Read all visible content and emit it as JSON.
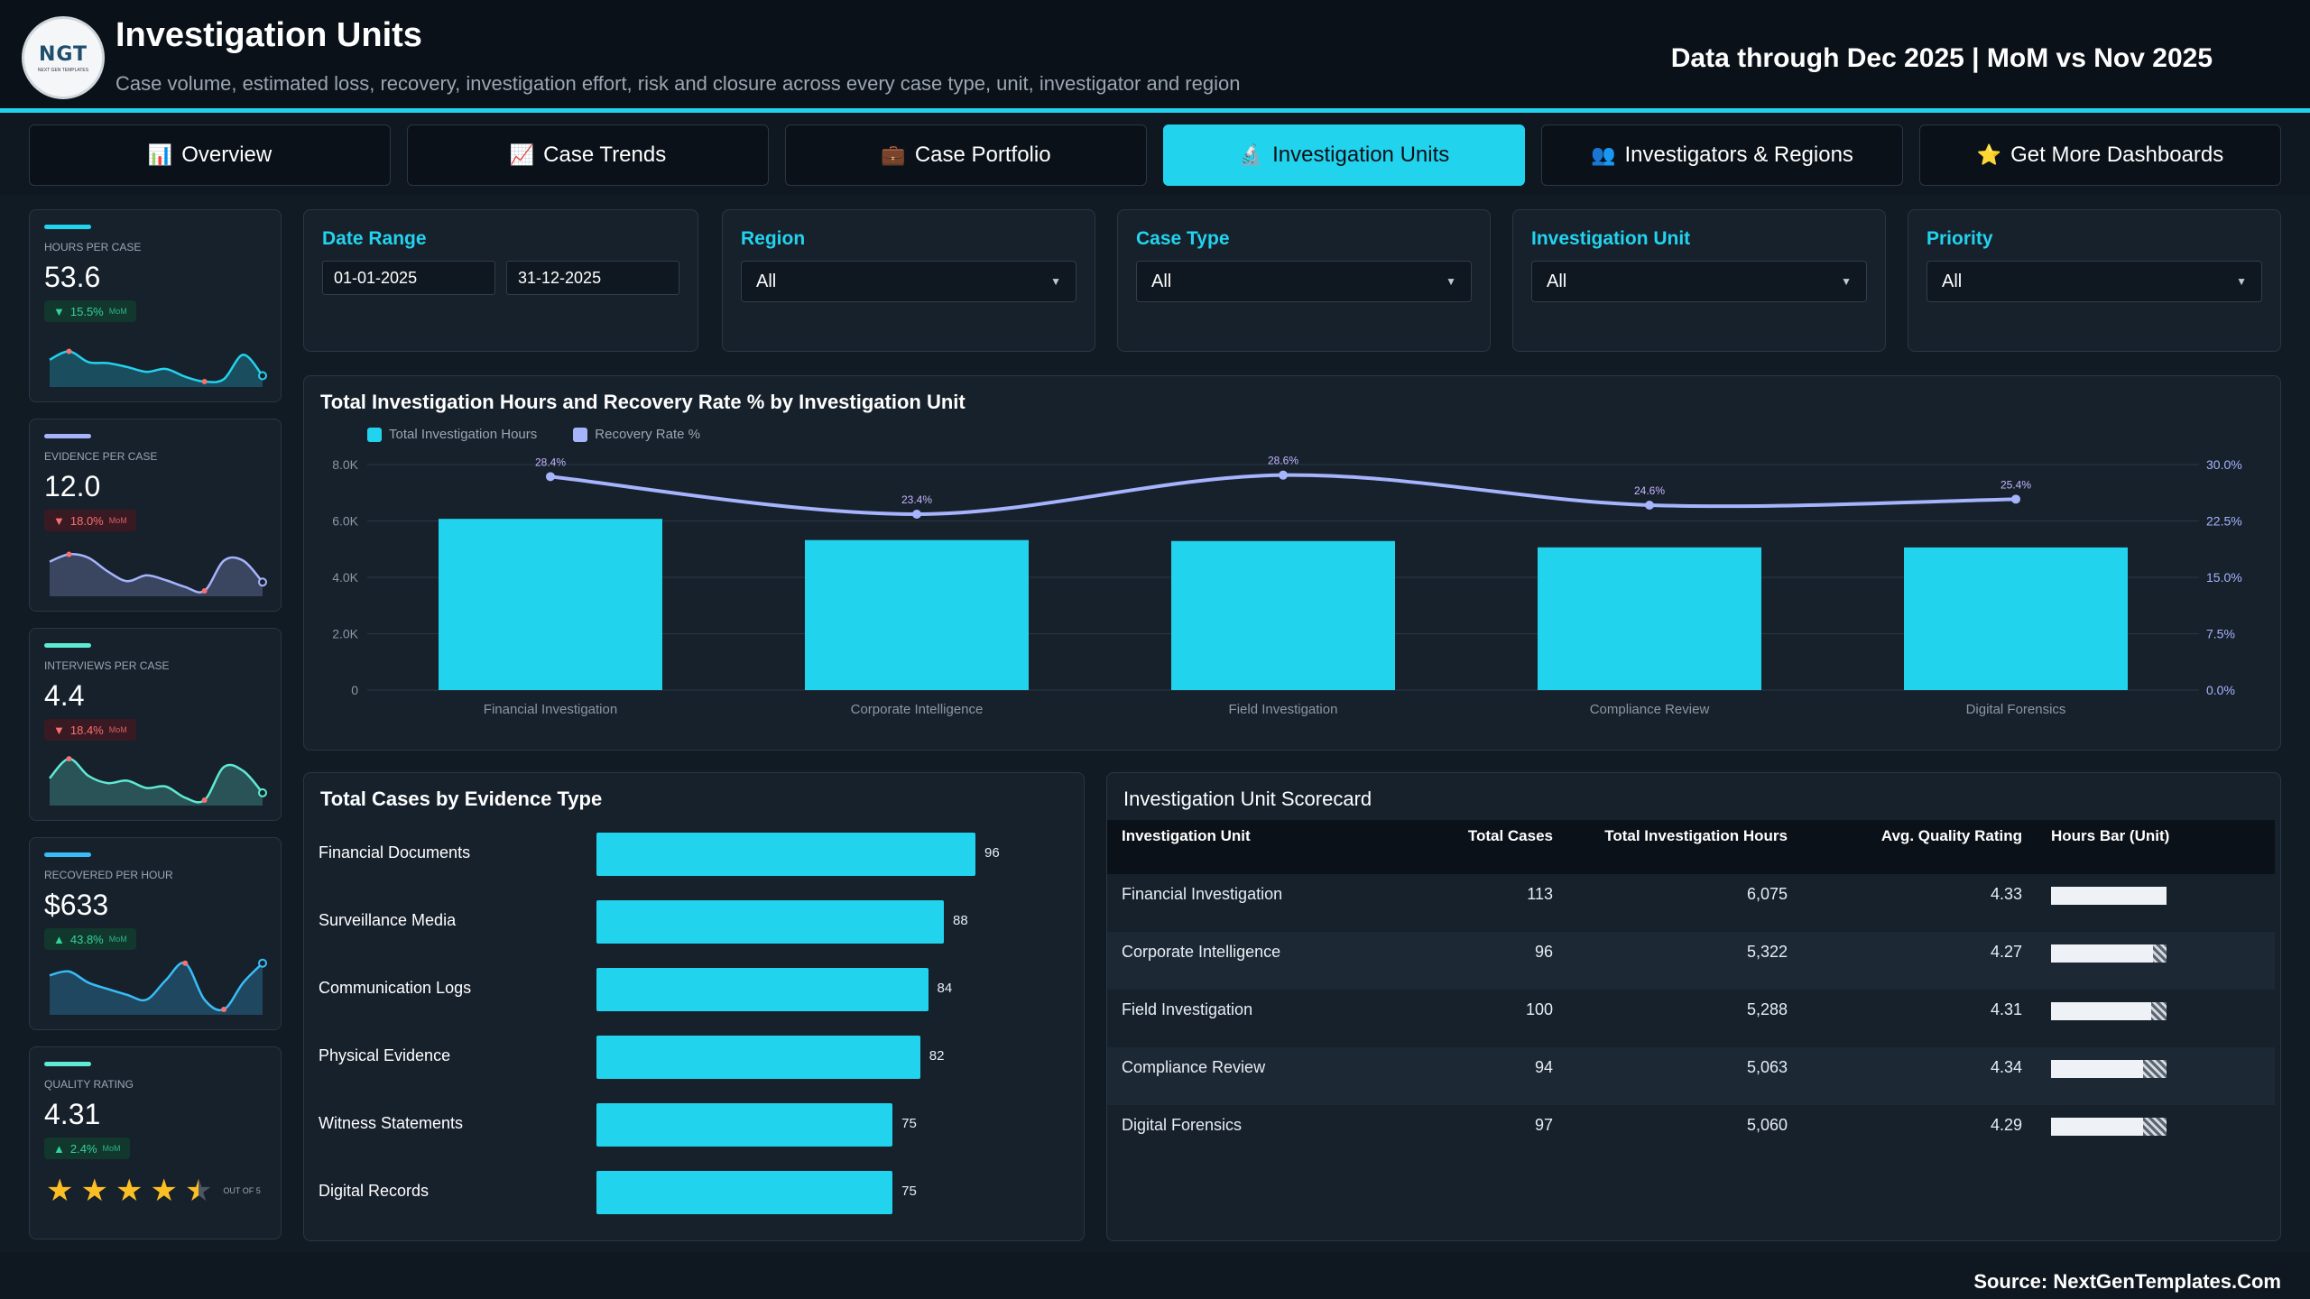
{
  "header": {
    "logo_text": "NGT",
    "logo_sub": "NEXT GEN TEMPLATES",
    "title": "Investigation Units",
    "subtitle": "Case volume, estimated loss, recovery, investigation effort, risk and closure across every case type, unit, investigator and region",
    "data_note": "Data through Dec 2025 | MoM vs Nov 2025",
    "accent": "#22d3ee"
  },
  "tabs": [
    {
      "label": "Overview",
      "icon": "bar-chart-icon",
      "glyph": "📊"
    },
    {
      "label": "Case Trends",
      "icon": "trend-chart-icon",
      "glyph": "📈"
    },
    {
      "label": "Case Portfolio",
      "icon": "briefcase-icon",
      "glyph": "💼"
    },
    {
      "label": "Investigation Units",
      "icon": "microscope-icon",
      "glyph": "🔬",
      "active": true
    },
    {
      "label": "Investigators & Regions",
      "icon": "people-icon",
      "glyph": "👥"
    },
    {
      "label": "Get More Dashboards",
      "icon": "star-icon",
      "glyph": "⭐"
    }
  ],
  "kpis": [
    {
      "label": "Hours per Case",
      "value": "53.6",
      "change": "15.5%",
      "direction": "down",
      "badge": "up",
      "mom": "MoM",
      "color": "#22d3ee",
      "spark": [
        0.45,
        0.62,
        0.4,
        0.38,
        0.3,
        0.2,
        0.26,
        0.1,
        0.0,
        0.05,
        0.55,
        0.12
      ]
    },
    {
      "label": "Evidence per Case",
      "value": "12.0",
      "change": "18.0%",
      "direction": "down",
      "badge": "down",
      "mom": "MoM",
      "color": "#a5b4fc",
      "spark": [
        0.6,
        0.75,
        0.68,
        0.4,
        0.2,
        0.32,
        0.22,
        0.08,
        0.0,
        0.62,
        0.62,
        0.18
      ]
    },
    {
      "label": "Interviews per Case",
      "value": "4.4",
      "change": "18.4%",
      "direction": "down",
      "badge": "down",
      "mom": "MoM",
      "color": "#5eead4",
      "spark": [
        0.45,
        0.85,
        0.5,
        0.35,
        0.4,
        0.25,
        0.28,
        0.05,
        0.0,
        0.68,
        0.6,
        0.15
      ]
    },
    {
      "label": "Recovered per Hour",
      "value": "$633",
      "change": "43.8%",
      "direction": "up",
      "badge": "up",
      "mom": "MoM",
      "color": "#38bdf8",
      "spark": [
        0.7,
        0.78,
        0.55,
        0.42,
        0.3,
        0.2,
        0.6,
        0.95,
        0.2,
        0.0,
        0.55,
        0.95
      ]
    },
    {
      "label": "Quality Rating",
      "value": "4.31",
      "change": "2.4%",
      "direction": "up",
      "badge": "up",
      "mom": "MoM",
      "color": "#5eead4",
      "stars": 4.31,
      "out_of": "OUT OF 5"
    }
  ],
  "filters": {
    "date_range": {
      "label": "Date Range",
      "start": "01-01-2025",
      "end": "31-12-2025"
    },
    "region": {
      "label": "Region",
      "value": "All"
    },
    "case_type": {
      "label": "Case Type",
      "value": "All"
    },
    "investigation_unit": {
      "label": "Investigation Unit",
      "value": "All"
    },
    "priority": {
      "label": "Priority",
      "value": "All"
    }
  },
  "combo_chart": {
    "title": "Total Investigation Hours and Recovery Rate % by Investigation Unit",
    "legend": [
      "Total Investigation Hours",
      "Recovery Rate %"
    ],
    "colors": {
      "bars": "#22d3ee",
      "line": "#a5b4fc"
    }
  },
  "evidence_chart": {
    "title": "Total Cases by Evidence Type"
  },
  "scorecard": {
    "title": "Investigation Unit Scorecard",
    "columns": [
      "Investigation Unit",
      "Total Cases",
      "Total Investigation Hours",
      "Avg. Quality Rating",
      "Hours Bar (Unit)"
    ],
    "rows": [
      {
        "unit": "Financial Investigation",
        "cases": "113",
        "hours": "6,075",
        "rating": "4.33",
        "bar": 1.0
      },
      {
        "unit": "Corporate Intelligence",
        "cases": "96",
        "hours": "5,322",
        "rating": "4.27",
        "bar": 0.88
      },
      {
        "unit": "Field Investigation",
        "cases": "100",
        "hours": "5,288",
        "rating": "4.31",
        "bar": 0.87
      },
      {
        "unit": "Compliance Review",
        "cases": "94",
        "hours": "5,063",
        "rating": "4.34",
        "bar": 0.8
      },
      {
        "unit": "Digital Forensics",
        "cases": "97",
        "hours": "5,060",
        "rating": "4.29",
        "bar": 0.8
      }
    ]
  },
  "chart_data": [
    {
      "type": "bar",
      "title": "Total Investigation Hours and Recovery Rate % by Investigation Unit",
      "categories": [
        "Financial Investigation",
        "Corporate Intelligence",
        "Field Investigation",
        "Compliance Review",
        "Digital Forensics"
      ],
      "series": [
        {
          "name": "Total Investigation Hours",
          "type": "bar",
          "axis": "left",
          "values": [
            6075,
            5322,
            5288,
            5063,
            5060
          ]
        },
        {
          "name": "Recovery Rate %",
          "type": "line",
          "axis": "right",
          "values": [
            28.4,
            23.4,
            28.6,
            24.6,
            25.4
          ],
          "labels": [
            "28.4%",
            "23.4%",
            "28.6%",
            "24.6%",
            "25.4%"
          ]
        }
      ],
      "y_ticks": [
        "0",
        "2.0K",
        "4.0K",
        "6.0K",
        "8.0K"
      ],
      "y2_ticks": [
        "0.0%",
        "7.5%",
        "15.0%",
        "22.5%",
        "30.0%"
      ],
      "ylim": [
        0,
        8000
      ],
      "y2lim": [
        0,
        30
      ],
      "grid": true,
      "legend_position": "top-left"
    },
    {
      "type": "bar",
      "orientation": "horizontal",
      "title": "Total Cases by Evidence Type",
      "categories": [
        "Financial Documents",
        "Surveillance Media",
        "Communication Logs",
        "Physical Evidence",
        "Witness Statements",
        "Digital Records"
      ],
      "values": [
        96,
        88,
        84,
        82,
        75,
        75
      ],
      "xlim": [
        0,
        100
      ]
    }
  ],
  "footer": {
    "source": "Source: NextGenTemplates.Com"
  }
}
